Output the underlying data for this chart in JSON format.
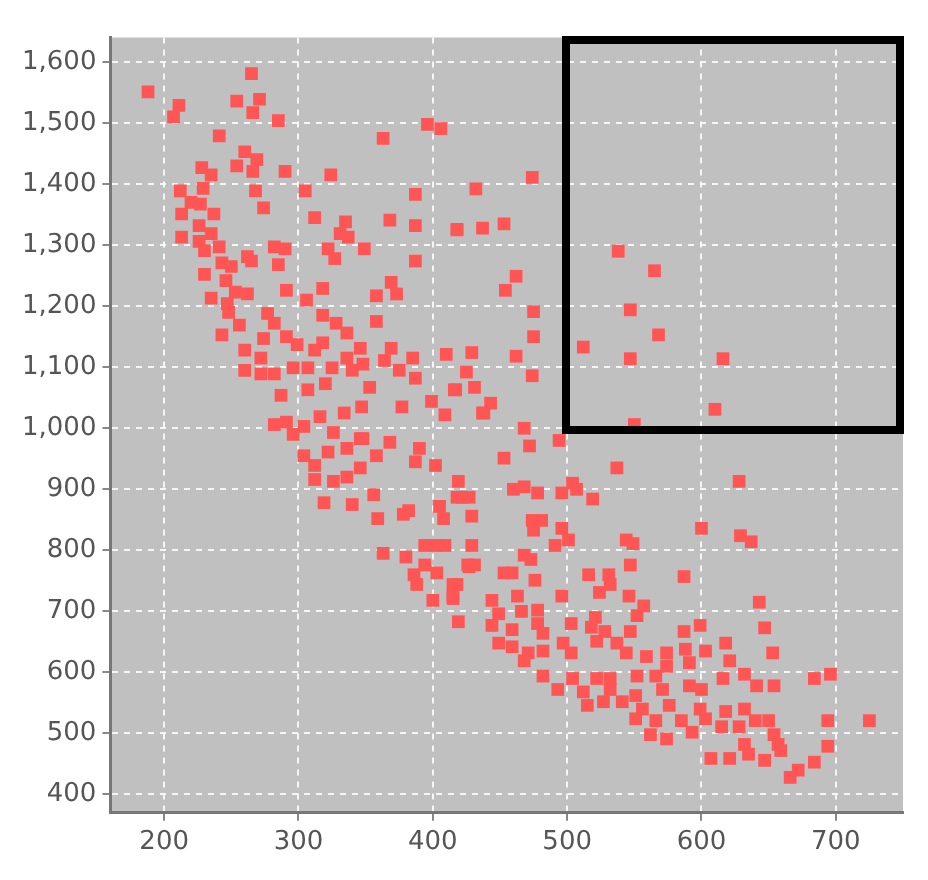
{
  "chart_data": {
    "type": "scatter",
    "marker": "square",
    "grid": true,
    "xlim": [
      160,
      750
    ],
    "ylim": [
      370,
      1640
    ],
    "xticks": [
      200,
      300,
      400,
      500,
      600,
      700
    ],
    "yticks": [
      400,
      500,
      600,
      700,
      800,
      900,
      {
        "value": 1000,
        "label": "1,000"
      },
      {
        "value": 1100,
        "label": "1,100"
      },
      {
        "value": 1200,
        "label": "1,200"
      },
      {
        "value": 1300,
        "label": "1,300"
      },
      {
        "value": 1400,
        "label": "1,400"
      },
      {
        "value": 1500,
        "label": "1,500"
      },
      {
        "value": 1600,
        "label": "1,600"
      }
    ],
    "series": [
      {
        "color": "#ff5555",
        "x": [
          188,
          211,
          207,
          265,
          254,
          271,
          266,
          285,
          241,
          260,
          269,
          254,
          266,
          290,
          228,
          235,
          229,
          212,
          268,
          305,
          324,
          220,
          227,
          274,
          237,
          213,
          226,
          235,
          213,
          226,
          241,
          230,
          282,
          290,
          243,
          250,
          262,
          265,
          285,
          230,
          246,
          235,
          253,
          262,
          247,
          248,
          291,
          306,
          318,
          312,
          335,
          331,
          337,
          322,
          327,
          349,
          368,
          387,
          387,
          387,
          363,
          396,
          406,
          418,
          369,
          373,
          358,
          358,
          277,
          282,
          243,
          256,
          274,
          291,
          299,
          318,
          328,
          336,
          318,
          312,
          260,
          272,
          260,
          272,
          282,
          296,
          307,
          325,
          336,
          346,
          348,
          340,
          364,
          369,
          385,
          375,
          387,
          353,
          320,
          307,
          287,
          377,
          399,
          409,
          417,
          410,
          425,
          347,
          334,
          316,
          304,
          291,
          296,
          326,
          346,
          282,
          304,
          312,
          322,
          336,
          348,
          312,
          319,
          326,
          336,
          346,
          340,
          356,
          359,
          358,
          368,
          363,
          380,
          378,
          382,
          390,
          387,
          402,
          394,
          402,
          409,
          394,
          386,
          388,
          403,
          400,
          415,
          418,
          419,
          405,
          408,
          419,
          418,
          427,
          427,
          431,
          438,
          468,
          472,
          494,
          453,
          537,
          504,
          460,
          468,
          478,
          496,
          507,
          519,
          422,
          429,
          474,
          481,
          475,
          496,
          600,
          628,
          629,
          637,
          429,
          468,
          473,
          491,
          501,
          544,
          549,
          547,
          426,
          459,
          453,
          476,
          516,
          531,
          532,
          524,
          546,
          415,
          415,
          496,
          587,
          643,
          444,
          463,
          449,
          466,
          478,
          444,
          459,
          478,
          482,
          503,
          521,
          552,
          557,
          587,
          599,
          647,
          518,
          528,
          547,
          449,
          459,
          471,
          482,
          497,
          503,
          522,
          537,
          544,
          559,
          574,
          588,
          603,
          618,
          653,
          621,
          591,
          468,
          482,
          504,
          522,
          532,
          552,
          566,
          574,
          591,
          600,
          616,
          632,
          641,
          654,
          684,
          696,
          493,
          512,
          532,
          551,
          571,
          515,
          527,
          541,
          556,
          576,
          599,
          618,
          632,
          551,
          566,
          585,
          603,
          615,
          628,
          640,
          650,
          694,
          725,
          562,
          574,
          593,
          654,
          657,
          632,
          659,
          694,
          607,
          621,
          635,
          647,
          684,
          672,
          666,
          474,
          432,
          418,
          437,
          453,
          462,
          454,
          475,
          475,
          462,
          474,
          429,
          431,
          416,
          443,
          437,
          538,
          565,
          547,
          568,
          512,
          547,
          616,
          610,
          550
        ],
        "values": [
          1551,
          1529,
          1510,
          1581,
          1536,
          1539,
          1517,
          1504,
          1479,
          1453,
          1440,
          1430,
          1421,
          1421,
          1427,
          1415,
          1393,
          1389,
          1389,
          1389,
          1415,
          1370,
          1367,
          1361,
          1351,
          1351,
          1332,
          1319,
          1313,
          1306,
          1297,
          1291,
          1297,
          1294,
          1271,
          1265,
          1281,
          1274,
          1268,
          1252,
          1242,
          1213,
          1223,
          1220,
          1204,
          1190,
          1226,
          1210,
          1229,
          1345,
          1338,
          1319,
          1313,
          1294,
          1278,
          1294,
          1341,
          1383,
          1332,
          1274,
          1475,
          1498,
          1491,
          1326,
          1239,
          1220,
          1217,
          1175,
          1188,
          1172,
          1153,
          1169,
          1147,
          1150,
          1137,
          1185,
          1172,
          1156,
          1140,
          1128,
          1128,
          1115,
          1095,
          1089,
          1089,
          1099,
          1099,
          1099,
          1115,
          1131,
          1105,
          1095,
          1111,
          1131,
          1115,
          1095,
          1082,
          1067,
          1073,
          1063,
          1054,
          1035,
          1044,
          1022,
          1063,
          1121,
          1092,
          1035,
          1025,
          1019,
          1003,
          1010,
          990,
          993,
          983,
          1006,
          955,
          939,
          961,
          967,
          983,
          916,
          878,
          913,
          920,
          935,
          875,
          891,
          852,
          955,
          977,
          795,
          789,
          859,
          865,
          967,
          945,
          939,
          808,
          808,
          808,
          776,
          760,
          744,
          763,
          718,
          725,
          744,
          683,
          872,
          852,
          913,
          887,
          887,
          773,
          776,
          1025,
          1000,
          971,
          980,
          951,
          935,
          910,
          900,
          904,
          894,
          894,
          900,
          884,
          887,
          856,
          849,
          849,
          833,
          836,
          836,
          913,
          824,
          814,
          808,
          792,
          785,
          808,
          817,
          817,
          811,
          776,
          776,
          763,
          763,
          751,
          760,
          760,
          744,
          731,
          725,
          744,
          721,
          725,
          757,
          715,
          718,
          725,
          696,
          700,
          702,
          677,
          670,
          680,
          664,
          680,
          690,
          693,
          709,
          667,
          677,
          673,
          674,
          667,
          667,
          648,
          642,
          632,
          635,
          648,
          632,
          651,
          648,
          632,
          626,
          632,
          638,
          635,
          648,
          632,
          619,
          616,
          619,
          594,
          590,
          590,
          590,
          594,
          594,
          610,
          578,
          572,
          590,
          597,
          578,
          578,
          590,
          597,
          572,
          568,
          572,
          562,
          572,
          546,
          552,
          552,
          540,
          546,
          540,
          536,
          540,
          524,
          521,
          521,
          524,
          511,
          511,
          521,
          521,
          521,
          521,
          498,
          491,
          502,
          498,
          482,
          482,
          472,
          479,
          459,
          459,
          466,
          456,
          453,
          440,
          428,
          1411,
          1392,
          1325,
          1328,
          1335,
          1249,
          1226,
          1191,
          1150,
          1118,
          1086,
          1124,
          1067,
          1063,
          1041,
          1025,
          1290,
          1258,
          1194,
          1153,
          1133,
          1114,
          1114,
          1031,
          1006
        ]
      }
    ]
  }
}
